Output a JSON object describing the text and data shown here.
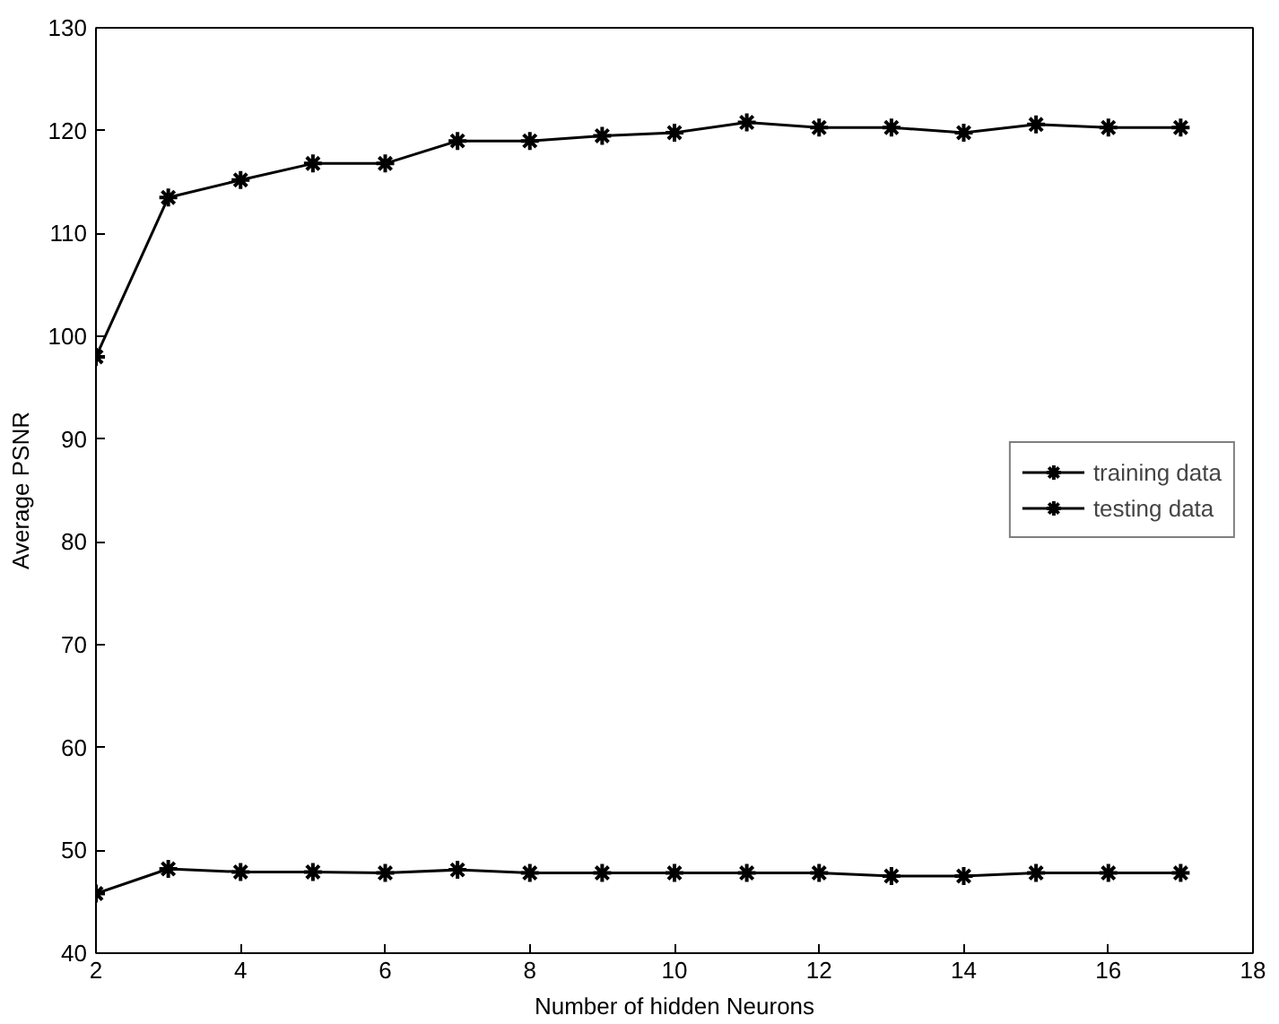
{
  "chart_data": {
    "type": "line",
    "xlabel": "Number of hidden Neurons",
    "ylabel": "Average PSNR",
    "x": [
      2,
      3,
      4,
      5,
      6,
      7,
      8,
      9,
      10,
      11,
      12,
      13,
      14,
      15,
      16,
      17
    ],
    "series": [
      {
        "name": "training data",
        "color": "#000000",
        "values": [
          98,
          113.5,
          115.2,
          116.8,
          116.8,
          119,
          119,
          119.5,
          119.8,
          120.8,
          120.3,
          120.3,
          119.8,
          120.6,
          120.3,
          120.3
        ]
      },
      {
        "name": "testing data",
        "color": "#000000",
        "values": [
          45.8,
          48.2,
          47.9,
          47.9,
          47.8,
          48.1,
          47.8,
          47.8,
          47.8,
          47.8,
          47.8,
          47.5,
          47.5,
          47.8,
          47.8,
          47.8
        ]
      }
    ],
    "xlim": [
      2,
      18
    ],
    "xticks": [
      2,
      4,
      6,
      8,
      10,
      12,
      14,
      16,
      18
    ],
    "ylim": [
      40,
      130
    ],
    "yticks": [
      40,
      50,
      60,
      70,
      80,
      90,
      100,
      110,
      120,
      130
    ],
    "grid": false,
    "legend": "right",
    "marker": "cross",
    "line_style": "solid"
  }
}
